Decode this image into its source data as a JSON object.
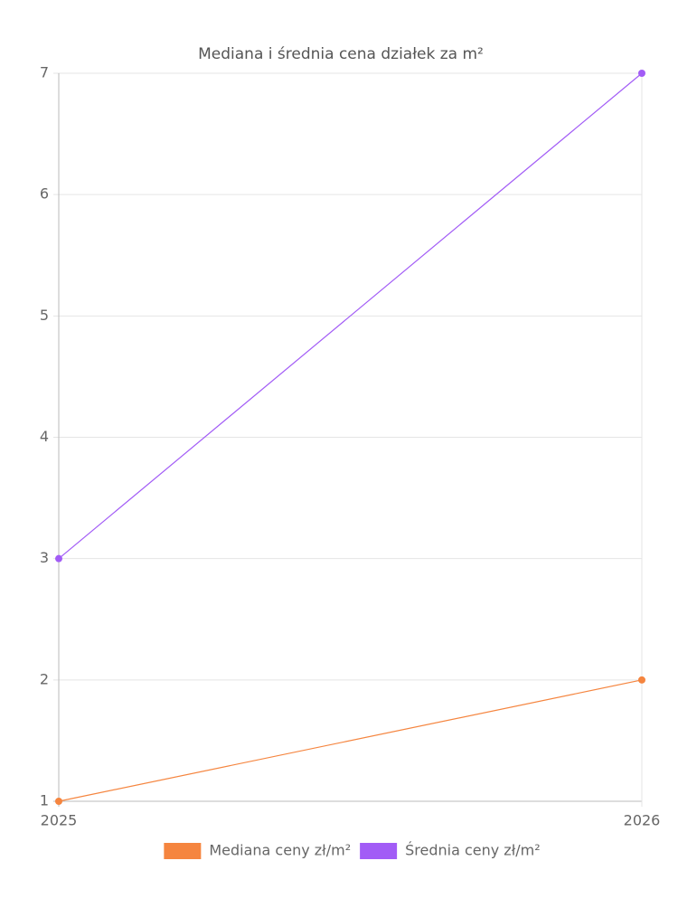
{
  "chart_data": {
    "type": "line",
    "title": "Mediana i średnia cena działek za m²",
    "categories": [
      "2025",
      "2026"
    ],
    "series": [
      {
        "name": "Mediana ceny zł/m²",
        "color": "#f5853f",
        "values": [
          1,
          2
        ]
      },
      {
        "name": "Średnia ceny zł/m²",
        "color": "#a25cf6",
        "values": [
          3,
          7
        ]
      }
    ],
    "ylim": [
      1,
      7
    ],
    "yticks": [
      1,
      2,
      3,
      4,
      5,
      6,
      7
    ],
    "grid": true,
    "legend": "bottom"
  }
}
